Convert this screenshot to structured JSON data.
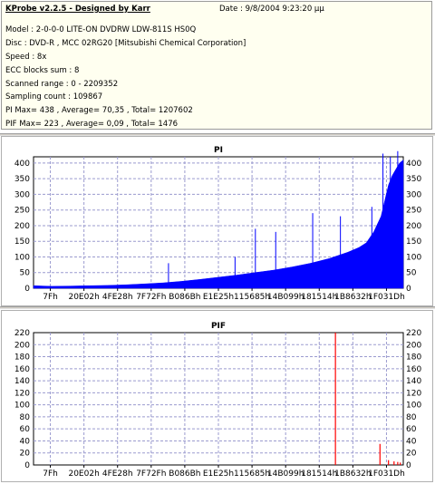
{
  "info": {
    "title": "KProbe v2.2.5 - Designed by Karr",
    "date": "Date : 9/8/2004 9:23:20 μμ",
    "lines": [
      "Model : 2-0-0-0 LITE-ON DVDRW LDW-811S   HS0Q",
      "Disc : DVD-R , MCC 02RG20  [Mitsubishi Chemical Corporation]",
      "Speed : 8x",
      "ECC blocks sum : 8",
      "Scanned range : 0 - 2209352",
      "Sampling count : 109867",
      "PI Max= 438 , Average= 70,35 , Total= 1207602",
      "PIF Max= 223 , Average= 0,09 , Total= 1476"
    ]
  },
  "colors": {
    "pi": "#0000ff",
    "pif": "#ff0000",
    "grid": "#9b9bcf",
    "background": "#ffffff"
  },
  "chart_data": [
    {
      "type": "area",
      "title": "PI",
      "ylim": [
        0,
        420
      ],
      "yticks": [
        0,
        50,
        100,
        150,
        200,
        250,
        300,
        350,
        400
      ],
      "xticks": [
        "7Fh",
        "20E02h",
        "4FE28h",
        "7F72Fh",
        "B086Bh",
        "E1E25h",
        "115685h",
        "14B099h",
        "181514h",
        "1B8632h",
        "1F031Dh"
      ],
      "grid": true,
      "series": [
        {
          "x": [
            0,
            0.05,
            0.1,
            0.15,
            0.2,
            0.25,
            0.3,
            0.35,
            0.4,
            0.45,
            0.5,
            0.55,
            0.6,
            0.65,
            0.7,
            0.75,
            0.8,
            0.85,
            0.88,
            0.9,
            0.92,
            0.94,
            0.95,
            0.96,
            0.97,
            0.98,
            0.99,
            1.0
          ],
          "values": [
            8,
            6,
            7,
            8,
            9,
            11,
            14,
            17,
            22,
            28,
            35,
            42,
            50,
            58,
            68,
            80,
            95,
            115,
            130,
            145,
            180,
            230,
            280,
            330,
            360,
            380,
            400,
            410
          ]
        }
      ],
      "spikes": [
        {
          "x": 0.365,
          "value": 80
        },
        {
          "x": 0.545,
          "value": 100
        },
        {
          "x": 0.6,
          "value": 190
        },
        {
          "x": 0.655,
          "value": 180
        },
        {
          "x": 0.755,
          "value": 240
        },
        {
          "x": 0.83,
          "value": 230
        },
        {
          "x": 0.915,
          "value": 260
        },
        {
          "x": 0.945,
          "value": 430
        },
        {
          "x": 0.965,
          "value": 420
        },
        {
          "x": 0.985,
          "value": 438
        }
      ]
    },
    {
      "type": "bar",
      "title": "PIF",
      "ylim": [
        0,
        220
      ],
      "yticks": [
        0,
        20,
        40,
        60,
        80,
        100,
        120,
        140,
        160,
        180,
        200,
        220
      ],
      "xticks": [
        "7Fh",
        "20E02h",
        "4FE28h",
        "7F72Fh",
        "B086Bh",
        "E1E25h",
        "115685h",
        "14B099h",
        "181514h",
        "1B8632h",
        "1F031Dh"
      ],
      "grid": true,
      "bars": [
        {
          "x": 0.8165,
          "value": 223
        },
        {
          "x": 0.937,
          "value": 35
        },
        {
          "x": 0.96,
          "value": 8
        },
        {
          "x": 0.975,
          "value": 6
        },
        {
          "x": 0.985,
          "value": 5
        },
        {
          "x": 0.992,
          "value": 4
        }
      ]
    }
  ]
}
